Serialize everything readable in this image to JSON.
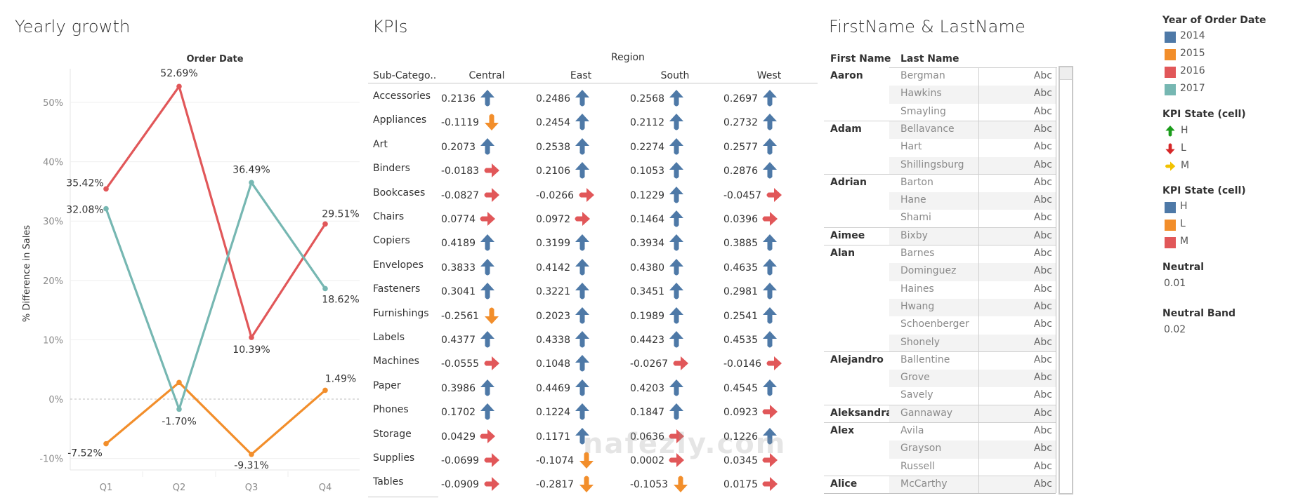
{
  "titles": {
    "chart": "Yearly growth",
    "kpi": "KPIs",
    "names": "FirstName & LastName"
  },
  "chart_data": {
    "type": "line",
    "title": "Yearly growth",
    "header": "Order Date",
    "xlabel": "",
    "ylabel": "% Difference in Sales",
    "categories": [
      "Q1",
      "Q2",
      "Q3",
      "Q4"
    ],
    "ylim": [
      -12,
      56
    ],
    "yticks": [
      -10,
      0,
      10,
      20,
      30,
      40,
      50
    ],
    "ytick_labels": [
      "-10%",
      "0%",
      "10%",
      "20%",
      "30%",
      "40%",
      "50%"
    ],
    "grid": true,
    "zero_line": "dashed",
    "legend": "right",
    "series": [
      {
        "name": "2015",
        "color": "#f28e2b",
        "values": [
          -7.52,
          2.8,
          -9.31,
          1.49
        ],
        "labels": [
          "-7.52%",
          null,
          "-9.31%",
          "1.49%"
        ]
      },
      {
        "name": "2016",
        "color": "#e15759",
        "values": [
          35.42,
          52.69,
          10.39,
          29.51
        ],
        "labels": [
          "35.42%",
          "52.69%",
          "10.39%",
          "29.51%"
        ]
      },
      {
        "name": "2017",
        "color": "#76b7b2",
        "values": [
          32.08,
          -1.7,
          36.49,
          18.62
        ],
        "labels": [
          "32.08%",
          "-1.70%",
          "36.49%",
          "18.62%"
        ]
      }
    ]
  },
  "kpi": {
    "region_header": "Region",
    "sub_header": "Sub-Catego..",
    "columns": [
      "Central",
      "East",
      "South",
      "West"
    ],
    "rows": [
      {
        "name": "Accessories",
        "values": [
          "0.2136",
          "0.2486",
          "0.2568",
          "0.2697"
        ],
        "states": [
          "H",
          "H",
          "H",
          "H"
        ]
      },
      {
        "name": "Appliances",
        "values": [
          "-0.1119",
          "0.2454",
          "0.2112",
          "0.2732"
        ],
        "states": [
          "L",
          "H",
          "H",
          "H"
        ]
      },
      {
        "name": "Art",
        "values": [
          "0.2073",
          "0.2538",
          "0.2274",
          "0.2577"
        ],
        "states": [
          "H",
          "H",
          "H",
          "H"
        ]
      },
      {
        "name": "Binders",
        "values": [
          "-0.0183",
          "0.2106",
          "0.1053",
          "0.2876"
        ],
        "states": [
          "M",
          "H",
          "H",
          "H"
        ]
      },
      {
        "name": "Bookcases",
        "values": [
          "-0.0827",
          "-0.0266",
          "0.1229",
          "-0.0457"
        ],
        "states": [
          "M",
          "M",
          "H",
          "M"
        ]
      },
      {
        "name": "Chairs",
        "values": [
          "0.0774",
          "0.0972",
          "0.1464",
          "0.0396"
        ],
        "states": [
          "M",
          "M",
          "H",
          "M"
        ]
      },
      {
        "name": "Copiers",
        "values": [
          "0.4189",
          "0.3199",
          "0.3934",
          "0.3885"
        ],
        "states": [
          "H",
          "H",
          "H",
          "H"
        ]
      },
      {
        "name": "Envelopes",
        "values": [
          "0.3833",
          "0.4142",
          "0.4380",
          "0.4635"
        ],
        "states": [
          "H",
          "H",
          "H",
          "H"
        ]
      },
      {
        "name": "Fasteners",
        "values": [
          "0.3041",
          "0.3221",
          "0.3451",
          "0.2981"
        ],
        "states": [
          "H",
          "H",
          "H",
          "H"
        ]
      },
      {
        "name": "Furnishings",
        "values": [
          "-0.2561",
          "0.2023",
          "0.1989",
          "0.2541"
        ],
        "states": [
          "L",
          "H",
          "H",
          "H"
        ]
      },
      {
        "name": "Labels",
        "values": [
          "0.4377",
          "0.4338",
          "0.4423",
          "0.4535"
        ],
        "states": [
          "H",
          "H",
          "H",
          "H"
        ]
      },
      {
        "name": "Machines",
        "values": [
          "-0.0555",
          "0.1048",
          "-0.0267",
          "-0.0146"
        ],
        "states": [
          "M",
          "H",
          "M",
          "M"
        ]
      },
      {
        "name": "Paper",
        "values": [
          "0.3986",
          "0.4469",
          "0.4203",
          "0.4545"
        ],
        "states": [
          "H",
          "H",
          "H",
          "H"
        ]
      },
      {
        "name": "Phones",
        "values": [
          "0.1702",
          "0.1224",
          "0.1847",
          "0.0923"
        ],
        "states": [
          "H",
          "H",
          "H",
          "M"
        ]
      },
      {
        "name": "Storage",
        "values": [
          "0.0429",
          "0.1171",
          "0.0636",
          "0.1226"
        ],
        "states": [
          "M",
          "H",
          "M",
          "H"
        ]
      },
      {
        "name": "Supplies",
        "values": [
          "-0.0699",
          "-0.1074",
          "0.0002",
          "0.0345"
        ],
        "states": [
          "M",
          "L",
          "M",
          "M"
        ]
      },
      {
        "name": "Tables",
        "values": [
          "-0.0909",
          "-0.2817",
          "-0.1053",
          "0.0175"
        ],
        "states": [
          "M",
          "L",
          "L",
          "M"
        ]
      }
    ]
  },
  "names": {
    "headers": {
      "first": "First Name",
      "last": "Last Name"
    },
    "cell_text": "Abc",
    "groups": [
      {
        "first": "Aaron",
        "last": [
          "Bergman",
          "Hawkins",
          "Smayling"
        ]
      },
      {
        "first": "Adam",
        "last": [
          "Bellavance",
          "Hart",
          "Shillingsburg"
        ]
      },
      {
        "first": "Adrian",
        "last": [
          "Barton",
          "Hane",
          "Shami"
        ]
      },
      {
        "first": "Aimee",
        "last": [
          "Bixby"
        ]
      },
      {
        "first": "Alan",
        "last": [
          "Barnes",
          "Dominguez",
          "Haines",
          "Hwang",
          "Schoenberger",
          "Shonely"
        ]
      },
      {
        "first": "Alejandro",
        "last": [
          "Ballentine",
          "Grove",
          "Savely"
        ]
      },
      {
        "first": "Aleksandra",
        "last": [
          "Gannaway"
        ]
      },
      {
        "first": "Alex",
        "last": [
          "Avila",
          "Grayson",
          "Russell"
        ]
      },
      {
        "first": "Alice",
        "last": [
          "McCarthy"
        ]
      }
    ]
  },
  "legend": {
    "year": {
      "title": "Year of Order Date",
      "items": [
        {
          "label": "2014",
          "color": "#4e79a7"
        },
        {
          "label": "2015",
          "color": "#f28e2b"
        },
        {
          "label": "2016",
          "color": "#e15759"
        },
        {
          "label": "2017",
          "color": "#76b7b2"
        }
      ]
    },
    "kpi_shape": {
      "title": "KPI State (cell)",
      "items": [
        {
          "label": "H",
          "icon": "arrow-up-icon",
          "color": "#1a9c1a"
        },
        {
          "label": "L",
          "icon": "arrow-down-icon",
          "color": "#d62728"
        },
        {
          "label": "M",
          "icon": "arrow-right-icon",
          "color": "#f2c200"
        }
      ]
    },
    "kpi_color": {
      "title": "KPI State (cell)",
      "items": [
        {
          "label": "H",
          "color": "#4e79a7"
        },
        {
          "label": "L",
          "color": "#f28e2b"
        },
        {
          "label": "M",
          "color": "#e15759"
        }
      ]
    },
    "neutral": {
      "title": "Neutral",
      "value": "0.01"
    },
    "neutral_band": {
      "title": "Neutral Band",
      "value": "0.02"
    }
  },
  "kpi_state_colors": {
    "H": "#4e79a7",
    "L": "#f28e2b",
    "M": "#e15759"
  },
  "watermark": "nafezly.com"
}
